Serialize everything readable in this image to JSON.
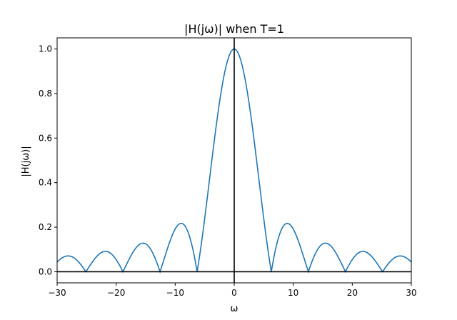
{
  "chart_data": {
    "type": "line",
    "title": "|H(jω)| when T=1",
    "xlabel": "ω",
    "ylabel": "|H(jω)|",
    "xlim": [
      -30,
      30
    ],
    "ylim": [
      -0.05,
      1.05
    ],
    "xticks": [
      -30,
      -20,
      -10,
      0,
      10,
      20,
      30
    ],
    "xtick_labels": [
      "−30",
      "−20",
      "−10",
      "0",
      "10",
      "20",
      "30"
    ],
    "yticks": [
      0.0,
      0.2,
      0.4,
      0.6,
      0.8,
      1.0
    ],
    "ytick_labels": [
      "0.0",
      "0.2",
      "0.4",
      "0.6",
      "0.8",
      "1.0"
    ],
    "grid": false,
    "legend": "none",
    "line_color": "#1f77b4",
    "axis_line_color": "#000000",
    "series": [
      {
        "x": [
          -30,
          -28.3,
          -25.13,
          -22.07,
          -18.85,
          -15.45,
          -12.57,
          -8.99,
          -6.28,
          -3.14,
          0,
          3.14,
          6.28,
          8.99,
          12.57,
          15.45,
          18.85,
          22.07,
          25.13,
          28.3,
          30
        ],
        "y": [
          0.048,
          0.071,
          0.0,
          0.091,
          0.0,
          0.128,
          0.0,
          0.217,
          0.0,
          0.637,
          1.0,
          0.637,
          0.0,
          0.217,
          0.0,
          0.128,
          0.0,
          0.091,
          0.0,
          0.071,
          0.048
        ]
      }
    ]
  }
}
